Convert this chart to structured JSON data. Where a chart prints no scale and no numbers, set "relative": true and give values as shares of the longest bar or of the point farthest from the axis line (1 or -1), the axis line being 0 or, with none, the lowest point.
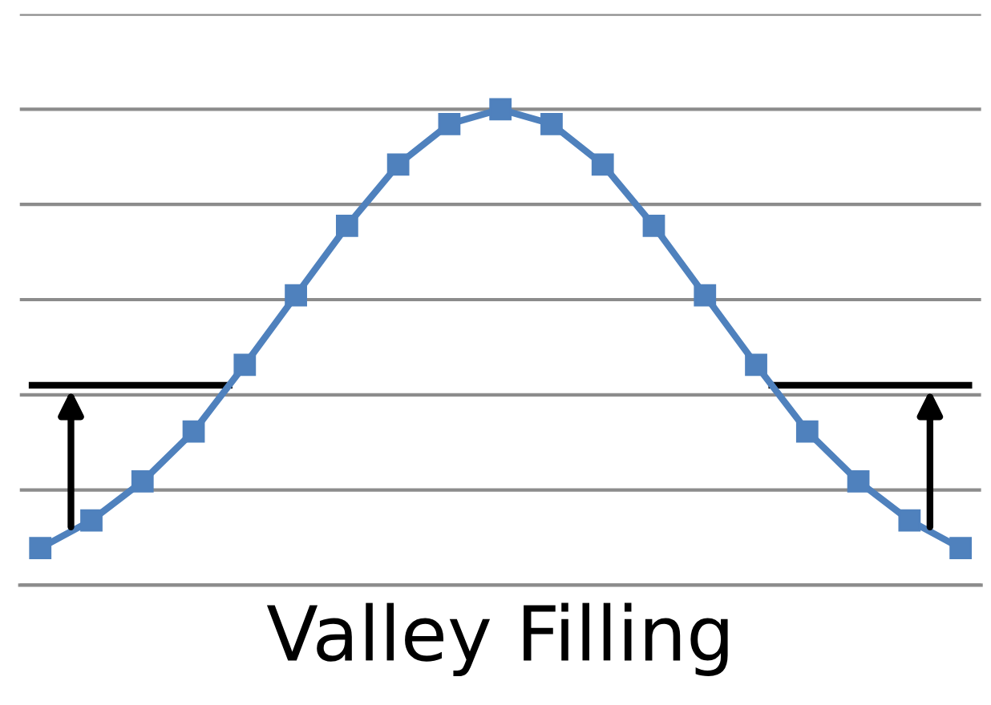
{
  "chart_data": {
    "type": "line",
    "relative": true,
    "xlabel": "Valley Filling",
    "categories": [
      null,
      null,
      null,
      null,
      null,
      null,
      null,
      null,
      null,
      null,
      null,
      null,
      null,
      null,
      null,
      null,
      null,
      null,
      null
    ],
    "series": [
      {
        "color": "#4f81bd",
        "marker": "square",
        "values": [
          0.078,
          0.136,
          0.218,
          0.323,
          0.463,
          0.609,
          0.755,
          0.884,
          0.969,
          1,
          0.969,
          0.884,
          0.755,
          0.609,
          0.463,
          0.323,
          0.218,
          0.136,
          0.078
        ]
      }
    ],
    "ref_lines": [
      {
        "axis": "y",
        "value": 0.42,
        "color": "#000000"
      }
    ],
    "grid": "y",
    "tick_labels": false
  }
}
